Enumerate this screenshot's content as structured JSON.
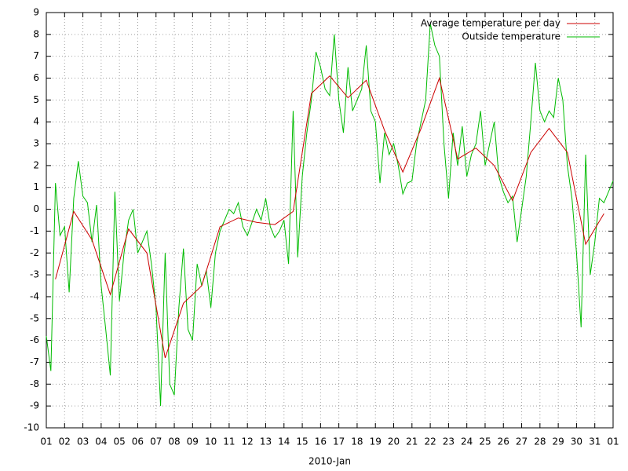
{
  "chart_data": {
    "type": "line",
    "xlabel": "2010-Jan",
    "xlim": [
      1,
      32
    ],
    "ylim": [
      -10,
      9
    ],
    "yticks": [
      -10,
      -9,
      -8,
      -7,
      -6,
      -5,
      -4,
      -3,
      -2,
      -1,
      0,
      1,
      2,
      3,
      4,
      5,
      6,
      7,
      8,
      9
    ],
    "xticks": [
      {
        "value": 1,
        "label": "01"
      },
      {
        "value": 2,
        "label": "02"
      },
      {
        "value": 3,
        "label": "03"
      },
      {
        "value": 4,
        "label": "04"
      },
      {
        "value": 5,
        "label": "05"
      },
      {
        "value": 6,
        "label": "06"
      },
      {
        "value": 7,
        "label": "07"
      },
      {
        "value": 8,
        "label": "08"
      },
      {
        "value": 9,
        "label": "09"
      },
      {
        "value": 10,
        "label": "10"
      },
      {
        "value": 11,
        "label": "11"
      },
      {
        "value": 12,
        "label": "12"
      },
      {
        "value": 13,
        "label": "13"
      },
      {
        "value": 14,
        "label": "14"
      },
      {
        "value": 15,
        "label": "15"
      },
      {
        "value": 16,
        "label": "16"
      },
      {
        "value": 17,
        "label": "17"
      },
      {
        "value": 18,
        "label": "18"
      },
      {
        "value": 19,
        "label": "19"
      },
      {
        "value": 20,
        "label": "20"
      },
      {
        "value": 21,
        "label": "21"
      },
      {
        "value": 22,
        "label": "22"
      },
      {
        "value": 23,
        "label": "23"
      },
      {
        "value": 24,
        "label": "24"
      },
      {
        "value": 25,
        "label": "25"
      },
      {
        "value": 26,
        "label": "26"
      },
      {
        "value": 27,
        "label": "27"
      },
      {
        "value": 28,
        "label": "28"
      },
      {
        "value": 29,
        "label": "29"
      },
      {
        "value": 30,
        "label": "30"
      },
      {
        "value": 31,
        "label": "31"
      },
      {
        "value": 32,
        "label": "01"
      }
    ],
    "grid": true,
    "legend": "top-right",
    "series": [
      {
        "name": "Average temperature per day",
        "color": "#cc0000",
        "x": [
          1.5,
          2.5,
          3.5,
          4.5,
          5.5,
          6.5,
          7.5,
          8.5,
          9.5,
          10.5,
          11.5,
          12.5,
          13.5,
          14.5,
          15.5,
          16.5,
          17.5,
          18.5,
          19.5,
          20.5,
          21.5,
          22.5,
          23.5,
          24.5,
          25.5,
          26.5,
          27.5,
          28.5,
          29.5,
          30.5,
          31.5
        ],
        "values": [
          -3.2,
          -0.1,
          -1.4,
          -3.9,
          -0.9,
          -2.0,
          -6.8,
          -4.3,
          -3.5,
          -0.8,
          -0.4,
          -0.6,
          -0.7,
          -0.1,
          5.3,
          6.1,
          5.1,
          5.9,
          3.6,
          1.7,
          3.7,
          6.0,
          2.3,
          2.8,
          2.0,
          0.4,
          2.6,
          3.7,
          2.6,
          -1.6,
          -0.2
        ]
      },
      {
        "name": "Outside temperature",
        "color": "#00bb00",
        "x": [
          1,
          1.25,
          1.5,
          1.75,
          2,
          2.25,
          2.5,
          2.75,
          3,
          3.25,
          3.5,
          3.75,
          4,
          4.25,
          4.5,
          4.75,
          5,
          5.25,
          5.5,
          5.75,
          6,
          6.25,
          6.5,
          6.75,
          7,
          7.25,
          7.5,
          7.75,
          8,
          8.25,
          8.5,
          8.75,
          9,
          9.25,
          9.5,
          9.75,
          10,
          10.25,
          10.5,
          10.75,
          11,
          11.25,
          11.5,
          11.75,
          12,
          12.25,
          12.5,
          12.75,
          13,
          13.25,
          13.5,
          13.75,
          14,
          14.25,
          14.5,
          14.75,
          15,
          15.25,
          15.5,
          15.75,
          16,
          16.25,
          16.5,
          16.75,
          17,
          17.25,
          17.5,
          17.75,
          18,
          18.25,
          18.5,
          18.75,
          19,
          19.25,
          19.5,
          19.75,
          20,
          20.25,
          20.5,
          20.75,
          21,
          21.25,
          21.5,
          21.75,
          22,
          22.25,
          22.5,
          22.75,
          23,
          23.25,
          23.5,
          23.75,
          24,
          24.25,
          24.5,
          24.75,
          25,
          25.25,
          25.5,
          25.75,
          26,
          26.25,
          26.5,
          26.75,
          27,
          27.25,
          27.5,
          27.75,
          28,
          28.25,
          28.5,
          28.75,
          29,
          29.25,
          29.5,
          29.75,
          30,
          30.25,
          30.5,
          30.75,
          31,
          31.25,
          31.5,
          31.75,
          32
        ],
        "values": [
          -5.8,
          -7.4,
          1.2,
          -1.2,
          -0.8,
          -3.8,
          0.5,
          2.2,
          0.6,
          0.3,
          -1.5,
          0.2,
          -3.5,
          -5.5,
          -7.6,
          0.8,
          -4.2,
          -2.0,
          -0.5,
          0.0,
          -2.0,
          -1.5,
          -1.0,
          -2.5,
          -4.5,
          -9.0,
          -2.0,
          -8.0,
          -8.5,
          -4.5,
          -1.8,
          -5.5,
          -6.0,
          -2.5,
          -3.5,
          -2.8,
          -4.5,
          -2.0,
          -1.0,
          -0.5,
          0.0,
          -0.2,
          0.3,
          -0.8,
          -1.2,
          -0.6,
          0.0,
          -0.5,
          0.5,
          -0.8,
          -1.3,
          -1.0,
          -0.5,
          -2.5,
          4.5,
          -2.2,
          1.5,
          3.5,
          5.0,
          7.2,
          6.5,
          5.5,
          5.2,
          8.0,
          5.0,
          3.5,
          6.5,
          4.5,
          5.0,
          5.5,
          7.5,
          4.5,
          4.0,
          1.2,
          3.5,
          2.5,
          3.0,
          2.0,
          0.7,
          1.2,
          1.3,
          3.0,
          4.0,
          5.0,
          8.5,
          7.5,
          7.0,
          3.0,
          0.5,
          3.5,
          2.0,
          3.8,
          1.5,
          2.5,
          3.0,
          4.5,
          2.0,
          3.0,
          4.0,
          1.5,
          0.8,
          0.3,
          0.6,
          -1.5,
          0.0,
          1.5,
          4.0,
          6.7,
          4.5,
          4.0,
          4.5,
          4.2,
          6.0,
          5.0,
          2.0,
          0.5,
          -2.0,
          -5.4,
          2.5,
          -3.0,
          -1.5,
          0.5,
          0.3,
          0.8,
          1.3
        ]
      }
    ]
  }
}
